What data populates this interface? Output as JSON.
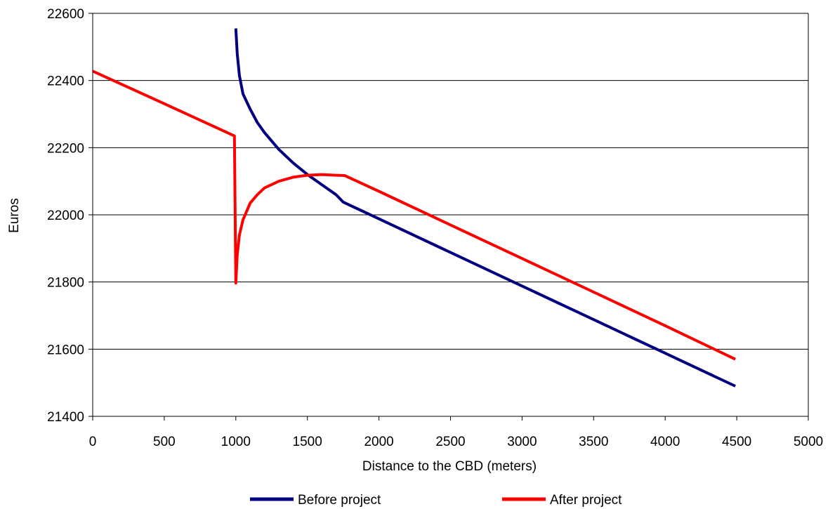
{
  "chart_data": {
    "type": "line",
    "title": "",
    "xlabel": "Distance to the CBD (meters)",
    "ylabel": "Euros",
    "xlim": [
      0,
      5000
    ],
    "ylim": [
      21400,
      22600
    ],
    "xticks": [
      0,
      500,
      1000,
      1500,
      2000,
      2500,
      3000,
      3500,
      4000,
      4500,
      5000
    ],
    "yticks": [
      21400,
      21600,
      21800,
      22000,
      22200,
      22400,
      22600
    ],
    "grid": "horizontal",
    "legend_position": "bottom",
    "series": [
      {
        "name": "Before project",
        "color": "#000080",
        "x": [
          1000,
          1010,
          1025,
          1050,
          1100,
          1150,
          1200,
          1300,
          1400,
          1500,
          1600,
          1700,
          1750,
          2000,
          2500,
          3000,
          3500,
          4000,
          4490
        ],
        "y": [
          22555,
          22480,
          22415,
          22360,
          22315,
          22275,
          22245,
          22195,
          22155,
          22120,
          22090,
          22060,
          22038,
          21988,
          21888,
          21788,
          21688,
          21588,
          21490
        ]
      },
      {
        "name": "After project",
        "color": "#ff0000",
        "x": [
          0,
          500,
          990,
          1000,
          1010,
          1025,
          1050,
          1100,
          1150,
          1200,
          1300,
          1400,
          1500,
          1600,
          1700,
          1760,
          2000,
          2500,
          3000,
          3500,
          4000,
          4490
        ],
        "y": [
          22428,
          22331,
          22235,
          21797,
          21880,
          21940,
          21985,
          22035,
          22060,
          22080,
          22100,
          22112,
          22118,
          22120,
          22118,
          22117,
          22070,
          21970,
          21870,
          21770,
          21670,
          21570
        ]
      }
    ]
  }
}
